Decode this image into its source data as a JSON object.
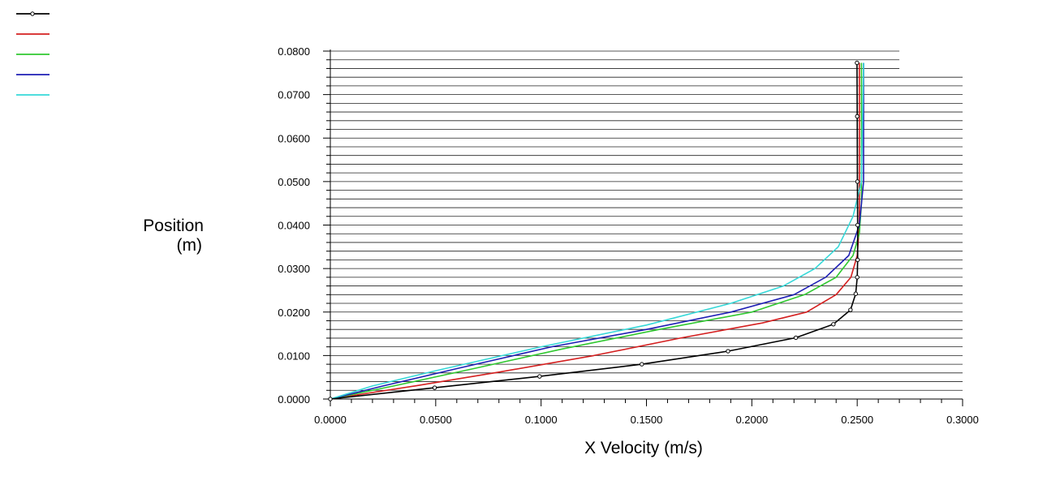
{
  "chart_data": {
    "type": "line",
    "title": "",
    "xlabel": "X Velocity (m/s)",
    "ylabel_lines": [
      "Position",
      "(m)"
    ],
    "xlim": [
      0,
      0.3
    ],
    "ylim": [
      0,
      0.08
    ],
    "x_ticks": [
      "0.0000",
      "0.0500",
      "0.1000",
      "0.1500",
      "0.2000",
      "0.2500",
      "0.3000"
    ],
    "y_ticks": [
      "0.0000",
      "0.0100",
      "0.0200",
      "0.0300",
      "0.0400",
      "0.0500",
      "0.0600",
      "0.0700",
      "0.0800"
    ],
    "grid": "horizontal",
    "legend_position": "top-left",
    "series": [
      {
        "color": "#000000",
        "markers": true,
        "points": [
          [
            0,
            0
          ],
          [
            0.0495,
            0.0026
          ],
          [
            0.0993,
            0.0052
          ],
          [
            0.1478,
            0.008
          ],
          [
            0.1887,
            0.011
          ],
          [
            0.2209,
            0.0141
          ],
          [
            0.2387,
            0.0172
          ],
          [
            0.2468,
            0.0205
          ],
          [
            0.2493,
            0.0242
          ],
          [
            0.25,
            0.028
          ],
          [
            0.2502,
            0.032
          ],
          [
            0.2502,
            0.04
          ],
          [
            0.2501,
            0.05
          ],
          [
            0.25,
            0.065
          ],
          [
            0.2499,
            0.0773
          ]
        ]
      },
      {
        "color": "#d42020",
        "markers": false,
        "points": [
          [
            0,
            0
          ],
          [
            0.04,
            0.003
          ],
          [
            0.08,
            0.0062
          ],
          [
            0.125,
            0.01
          ],
          [
            0.166,
            0.014
          ],
          [
            0.205,
            0.0175
          ],
          [
            0.226,
            0.02
          ],
          [
            0.24,
            0.024
          ],
          [
            0.247,
            0.028
          ],
          [
            0.25,
            0.033
          ],
          [
            0.251,
            0.04
          ],
          [
            0.251,
            0.055
          ],
          [
            0.251,
            0.0773
          ]
        ]
      },
      {
        "color": "#30c830",
        "markers": false,
        "points": [
          [
            0,
            0
          ],
          [
            0.03,
            0.003
          ],
          [
            0.068,
            0.007
          ],
          [
            0.11,
            0.0115
          ],
          [
            0.156,
            0.016
          ],
          [
            0.2,
            0.02
          ],
          [
            0.225,
            0.024
          ],
          [
            0.24,
            0.028
          ],
          [
            0.248,
            0.033
          ],
          [
            0.251,
            0.038
          ],
          [
            0.252,
            0.045
          ],
          [
            0.252,
            0.0773
          ]
        ]
      },
      {
        "color": "#1e1eb4",
        "markers": false,
        "points": [
          [
            0,
            0
          ],
          [
            0.025,
            0.003
          ],
          [
            0.06,
            0.007
          ],
          [
            0.105,
            0.012
          ],
          [
            0.15,
            0.016
          ],
          [
            0.19,
            0.02
          ],
          [
            0.22,
            0.024
          ],
          [
            0.235,
            0.028
          ],
          [
            0.246,
            0.033
          ],
          [
            0.251,
            0.04
          ],
          [
            0.253,
            0.05
          ],
          [
            0.253,
            0.0773
          ]
        ]
      },
      {
        "color": "#36d8d8",
        "markers": false,
        "points": [
          [
            0,
            0
          ],
          [
            0.02,
            0.003
          ],
          [
            0.05,
            0.0065
          ],
          [
            0.1,
            0.012
          ],
          [
            0.15,
            0.017
          ],
          [
            0.19,
            0.022
          ],
          [
            0.215,
            0.026
          ],
          [
            0.23,
            0.03
          ],
          [
            0.241,
            0.035
          ],
          [
            0.248,
            0.042
          ],
          [
            0.252,
            0.05
          ],
          [
            0.253,
            0.0773
          ]
        ]
      }
    ]
  }
}
